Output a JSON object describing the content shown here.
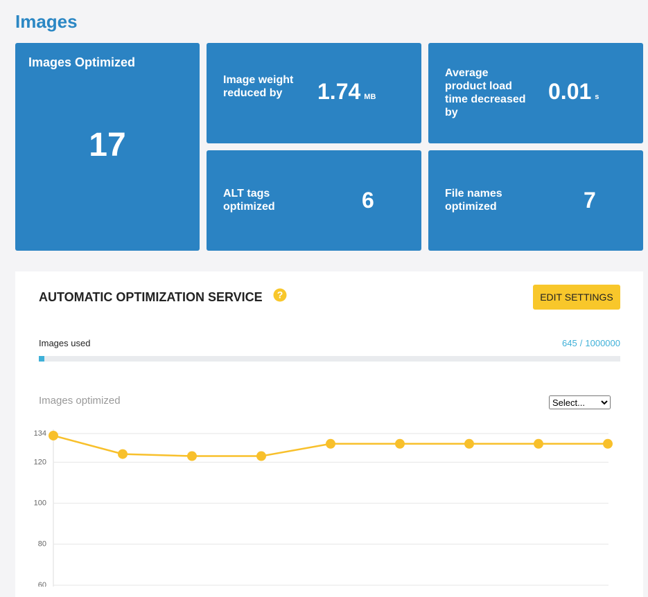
{
  "header": {
    "title": "Images"
  },
  "stats": [
    {
      "label": "Images Optimized",
      "value": 17
    },
    {
      "label": "Image weight reduced by",
      "value": 1.74,
      "unit": "MB"
    },
    {
      "label": "Average product load time decreased by",
      "value": 0.01,
      "unit": "s"
    },
    {
      "label": "ALT tags optimized",
      "value": 6
    },
    {
      "label": "File names optimized",
      "value": 7
    }
  ],
  "service": {
    "title": "AUTOMATIC OPTIMIZATION SERVICE",
    "button": "EDIT SETTINGS",
    "usage": {
      "label": "Images used",
      "used": 645,
      "separator": "/",
      "total": 1000000
    }
  },
  "chart_data": {
    "type": "line",
    "title": "Images optimized",
    "select": "Select...",
    "categories": [
      null,
      null,
      null,
      null,
      null,
      null,
      null,
      null,
      null
    ],
    "series": [
      {
        "color": "#f8c02b",
        "values": [
          133,
          124,
          123,
          123,
          129,
          129,
          129,
          129,
          129
        ]
      }
    ],
    "ylim": [
      60,
      134
    ],
    "yticks": [
      134,
      120,
      100,
      80,
      60
    ],
    "grid": true
  }
}
